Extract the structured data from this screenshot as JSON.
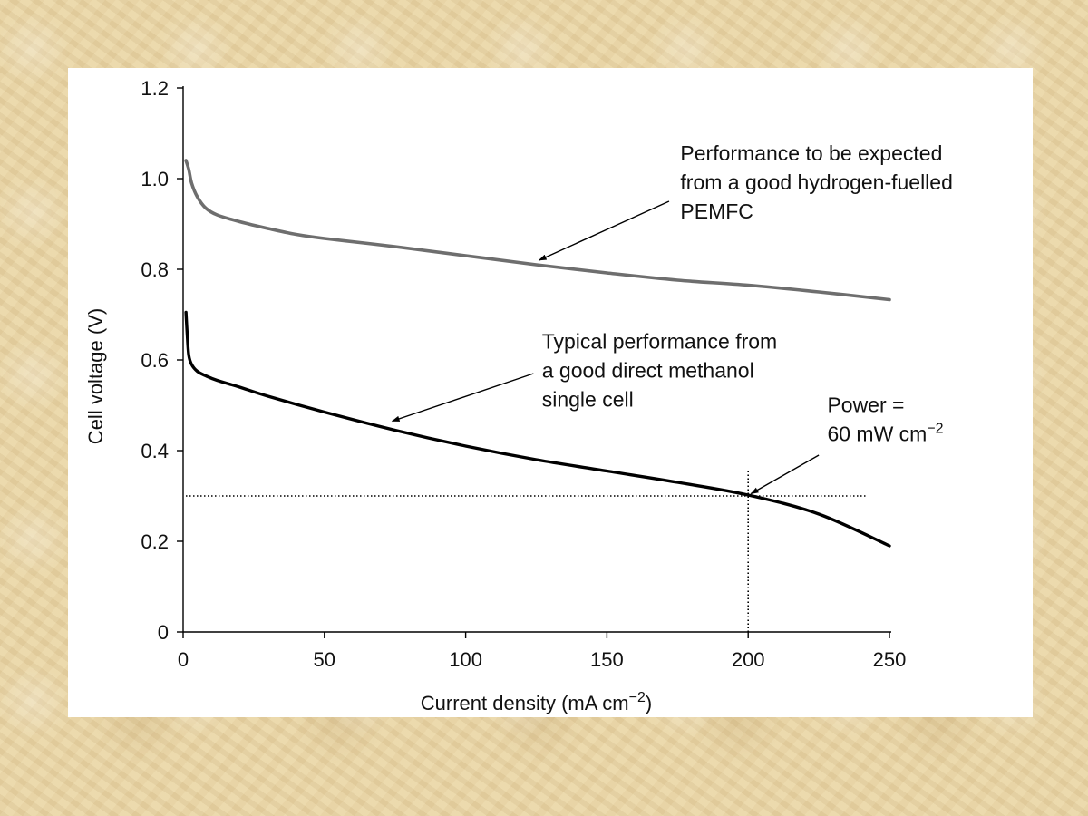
{
  "chart_data": {
    "type": "line",
    "xlabel": "Current density (mA cm",
    "xlabel_sup": "−2",
    "xlabel_end": ")",
    "ylabel": "Cell voltage (V)",
    "xlim": [
      0,
      250
    ],
    "ylim": [
      0,
      1.2
    ],
    "xticks": [
      "0",
      "50",
      "100",
      "150",
      "200",
      "250"
    ],
    "yticks": [
      "0",
      "0.2",
      "0.4",
      "0.6",
      "0.8",
      "1.0",
      "1.2"
    ],
    "grid": false,
    "series": [
      {
        "color": "#6e6e6e",
        "x": [
          1,
          2,
          3,
          5,
          8,
          12,
          20,
          30,
          40,
          50,
          75,
          100,
          125,
          150,
          175,
          200,
          225,
          250
        ],
        "y": [
          1.04,
          1.02,
          0.99,
          0.96,
          0.935,
          0.92,
          0.905,
          0.89,
          0.877,
          0.868,
          0.85,
          0.83,
          0.81,
          0.792,
          0.776,
          0.765,
          0.75,
          0.733
        ]
      },
      {
        "color": "#000000",
        "x": [
          1,
          1.5,
          2,
          3,
          5,
          8,
          12,
          20,
          30,
          50,
          75,
          100,
          125,
          150,
          175,
          200,
          225,
          250
        ],
        "y": [
          0.705,
          0.65,
          0.61,
          0.59,
          0.575,
          0.565,
          0.555,
          0.54,
          0.52,
          0.485,
          0.445,
          0.41,
          0.38,
          0.355,
          0.33,
          0.302,
          0.26,
          0.19
        ]
      }
    ],
    "reference_lines": {
      "horizontal_y": 0.3,
      "horizontal_x_range": [
        0,
        242
      ],
      "vertical_x": 200,
      "vertical_y_range": [
        0,
        0.355
      ]
    },
    "annotations": [
      {
        "lines": [
          "Performance to be expected",
          "from a good hydrogen-fuelled",
          "PEMFC"
        ],
        "text_at": [
          176,
          1.04
        ],
        "arrow_from": [
          172,
          0.95
        ],
        "arrow_to": [
          126,
          0.82
        ]
      },
      {
        "lines": [
          "Typical performance from",
          "a good direct methanol",
          "single cell"
        ],
        "text_at": [
          127,
          0.625
        ],
        "arrow_from": [
          124,
          0.57
        ],
        "arrow_to": [
          74,
          0.465
        ]
      },
      {
        "lines": [
          "Power =",
          "60 mW cm"
        ],
        "sup": "−2",
        "text_at": [
          228,
          0.485
        ],
        "arrow_from": [
          225,
          0.39
        ],
        "arrow_to": [
          201,
          0.305
        ]
      }
    ]
  }
}
